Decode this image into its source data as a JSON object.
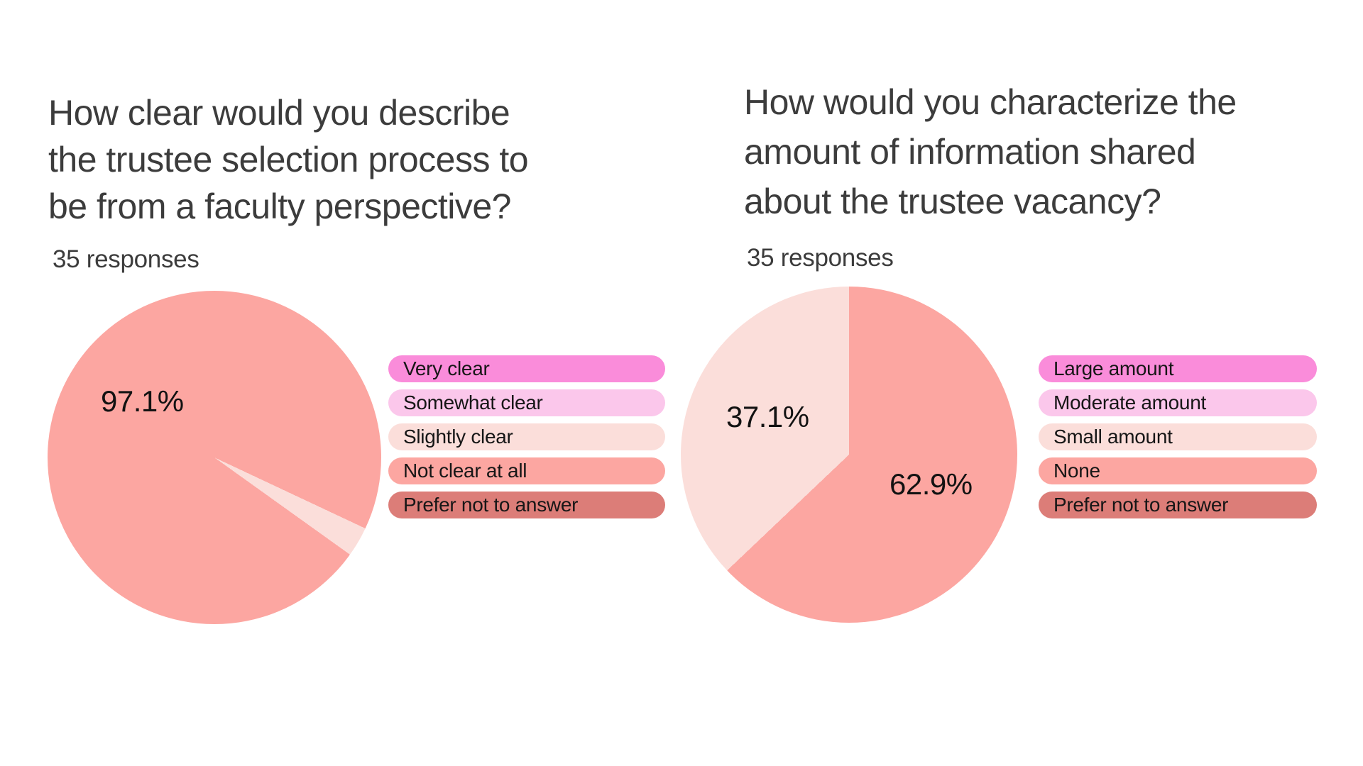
{
  "chart_data": [
    {
      "type": "pie",
      "title": "How clear would you describe the trustee selection process to be from a faculty perspective?",
      "subtitle": "35 responses",
      "total_responses": 35,
      "categories": [
        "Very clear",
        "Somewhat clear",
        "Slightly clear",
        "Not clear at all",
        "Prefer not to answer"
      ],
      "values_pct": [
        0,
        0,
        2.9,
        97.1,
        0
      ],
      "counts": [
        0,
        0,
        1,
        34,
        0
      ],
      "colors": [
        "#FA8CDA",
        "#FBC7EB",
        "#FBDEDA",
        "#FCA6A1",
        "#DC7D78"
      ],
      "data_labels": [
        "97.1%"
      ],
      "legend_position": "right"
    },
    {
      "type": "pie",
      "title": "How would you characterize the amount of information shared about the trustee vacancy?",
      "subtitle": "35 responses",
      "total_responses": 35,
      "categories": [
        "Large amount",
        "Moderate amount",
        "Small amount",
        "None",
        "Prefer not to answer"
      ],
      "values_pct": [
        0,
        0,
        37.1,
        62.9,
        0
      ],
      "counts": [
        0,
        0,
        13,
        22,
        0
      ],
      "colors": [
        "#FA8CDA",
        "#FBC7EB",
        "#FBDEDA",
        "#FCA6A1",
        "#DC7D78"
      ],
      "data_labels": [
        "62.9%",
        "37.1%"
      ],
      "legend_position": "right"
    }
  ],
  "charts": [
    {
      "title_lines": [
        "How clear would you describe",
        "the trustee selection process to",
        "be from a faculty perspective?"
      ],
      "responses": "35 responses",
      "legend": [
        {
          "label": "Very clear",
          "color": "#FA8CDA"
        },
        {
          "label": "Somewhat clear",
          "color": "#FBC7EB"
        },
        {
          "label": "Slightly clear",
          "color": "#FBDEDA"
        },
        {
          "label": "Not clear at all",
          "color": "#FCA6A1"
        },
        {
          "label": "Prefer not to answer",
          "color": "#DC7D78"
        }
      ],
      "pie": {
        "rotation_deg": 115.2,
        "slices": [
          {
            "category": "Slightly clear",
            "pct": 2.9,
            "color": "#FBDEDA"
          },
          {
            "category": "Not clear at all",
            "pct": 97.1,
            "color": "#FCA6A1"
          }
        ],
        "labels": [
          {
            "text": "97.1%"
          }
        ]
      }
    },
    {
      "title_lines": [
        "How would you characterize the",
        "amount of information shared",
        "about the trustee vacancy?"
      ],
      "responses": "35 responses",
      "legend": [
        {
          "label": "Large amount",
          "color": "#FA8CDA"
        },
        {
          "label": "Moderate amount",
          "color": "#FBC7EB"
        },
        {
          "label": "Small amount",
          "color": "#FBDEDA"
        },
        {
          "label": "None",
          "color": "#FCA6A1"
        },
        {
          "label": "Prefer not to answer",
          "color": "#DC7D78"
        }
      ],
      "pie": {
        "rotation_deg": 0,
        "slices": [
          {
            "category": "None",
            "pct": 62.9,
            "color": "#FCA6A1"
          },
          {
            "category": "Small amount",
            "pct": 37.1,
            "color": "#FBDEDA"
          }
        ],
        "labels": [
          {
            "text": "62.9%"
          },
          {
            "text": "37.1%"
          }
        ]
      }
    }
  ]
}
